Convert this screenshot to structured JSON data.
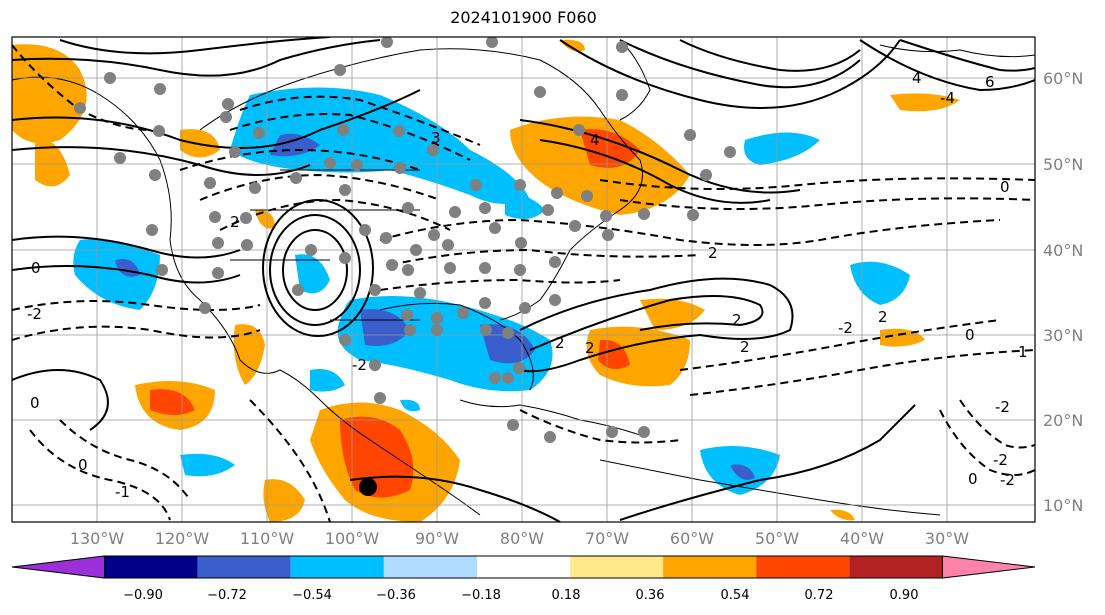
{
  "title": "2024101900 F060",
  "longitude_labels": [
    "130°W",
    "120°W",
    "110°W",
    "100°W",
    "90°W",
    "80°W",
    "70°W",
    "60°W",
    "50°W",
    "40°W",
    "30°W"
  ],
  "latitude_labels": [
    "60°N",
    "50°N",
    "40°N",
    "30°N",
    "20°N",
    "10°N"
  ],
  "colorbar": {
    "ticks": [
      "−0.90",
      "−0.72",
      "−0.54",
      "−0.36",
      "−0.18",
      "0.18",
      "0.36",
      "0.54",
      "0.72",
      "0.90"
    ],
    "colors": [
      "#9b30d8",
      "#00008b",
      "#3a5fcd",
      "#00bfff",
      "#afdcff",
      "#ffffff",
      "#ffe98a",
      "#ffa500",
      "#ff4500",
      "#b22222",
      "#ff82ab"
    ]
  },
  "contour_labels": [
    "6",
    "4",
    "2",
    "0",
    "2",
    "-2",
    "0",
    "2",
    "3",
    "4",
    "-4",
    "2",
    "-2",
    "0",
    "2",
    "-2",
    "0",
    "-2",
    "2",
    "-2",
    "1",
    "-1",
    "0",
    "-2",
    "2",
    "0"
  ],
  "colors": {
    "positive_anomaly": "#ffa500",
    "strong_positive": "#ff4500",
    "negative_anomaly": "#00bfff",
    "strong_negative": "#3a5fcd",
    "station_dot": "#808080",
    "contour": "#000000"
  }
}
